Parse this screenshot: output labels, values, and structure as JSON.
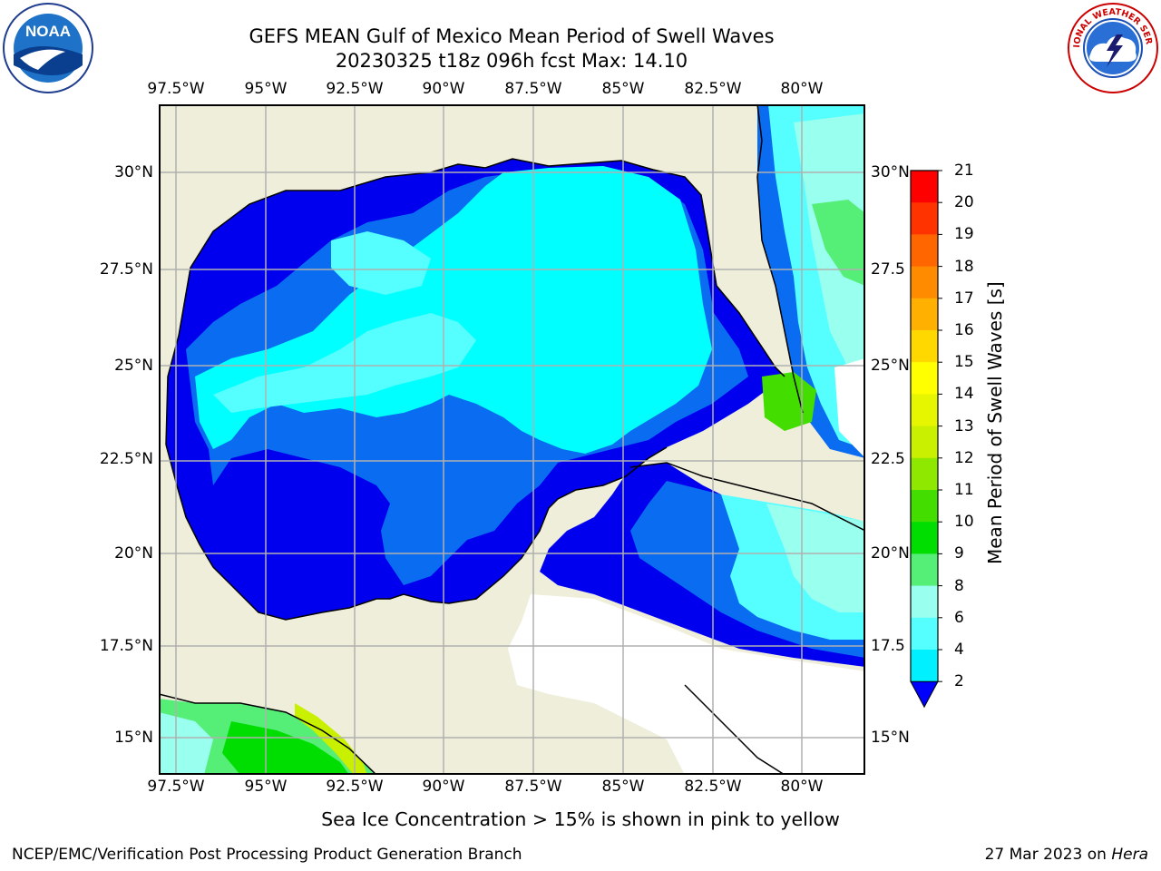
{
  "title": {
    "line1": "GEFS MEAN Gulf of Mexico Mean Period of Swell Waves",
    "line2": "20230325 t18z 096h fcst   Max: 14.10"
  },
  "logos": {
    "left": "noaa-logo",
    "left_text": "NOAA",
    "right": "nws-logo",
    "right_text": "NATIONAL WEATHER SERVICE"
  },
  "map": {
    "lon_labels": [
      "97.5°W",
      "95°W",
      "92.5°W",
      "90°W",
      "87.5°W",
      "85°W",
      "82.5°W",
      "80°W"
    ],
    "lat_labels_left": [
      "30°N",
      "27.5°N",
      "25°N",
      "22.5°N",
      "20°N",
      "17.5°N",
      "15°N"
    ],
    "lat_labels_right": [
      "30°N",
      "27.5",
      "25°N",
      "22.5",
      "20°N",
      "17.5",
      "15°N"
    ],
    "colors": {
      "land": "#efeedb",
      "grid": "#b0b0b0",
      "coast": "#000000"
    }
  },
  "colorbar": {
    "title": "Mean Period of Swell Waves [s]",
    "labels": [
      "21",
      "20",
      "19",
      "18",
      "17",
      "16",
      "15",
      "14",
      "13",
      "12",
      "11",
      "10",
      "9",
      "8",
      "6",
      "4",
      "2"
    ],
    "colors": [
      "#ff0000",
      "#ff3300",
      "#ff6600",
      "#ff8c00",
      "#ffb000",
      "#ffd800",
      "#ffff00",
      "#e6f500",
      "#c8f000",
      "#8ee800",
      "#44dd00",
      "#00dd00",
      "#55ee77",
      "#99ffee",
      "#55ffff",
      "#00f0ff",
      "#0077ff"
    ],
    "extend_color": "#0000ff"
  },
  "ice_note": "Sea Ice Concentration > 15% is shown in pink to yellow",
  "footer": {
    "left": "NCEP/EMC/Verification Post Processing Product Generation Branch",
    "right_prefix": "27 Mar 2023 on ",
    "right_host": "Hera"
  }
}
